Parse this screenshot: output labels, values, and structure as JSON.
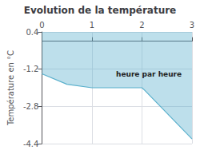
{
  "chart_data": {
    "type": "line",
    "title": "Evolution de la température",
    "ylabel": "Température en °C",
    "annotation": "heure par heure",
    "x": [
      0,
      0.5,
      1.0,
      1.05,
      2.0,
      2.05,
      3.0
    ],
    "values": [
      -1.4,
      -1.85,
      -2.0,
      -2.0,
      -2.0,
      -2.1,
      -4.2
    ],
    "color": "#5ab0cc",
    "xlim": [
      0,
      3
    ],
    "xticks": [
      0,
      1,
      2,
      3
    ],
    "ylim": [
      -4.4,
      0.4
    ],
    "yticks": [
      0.4,
      -1.2,
      -2.8,
      -4.4
    ],
    "grid": true
  }
}
